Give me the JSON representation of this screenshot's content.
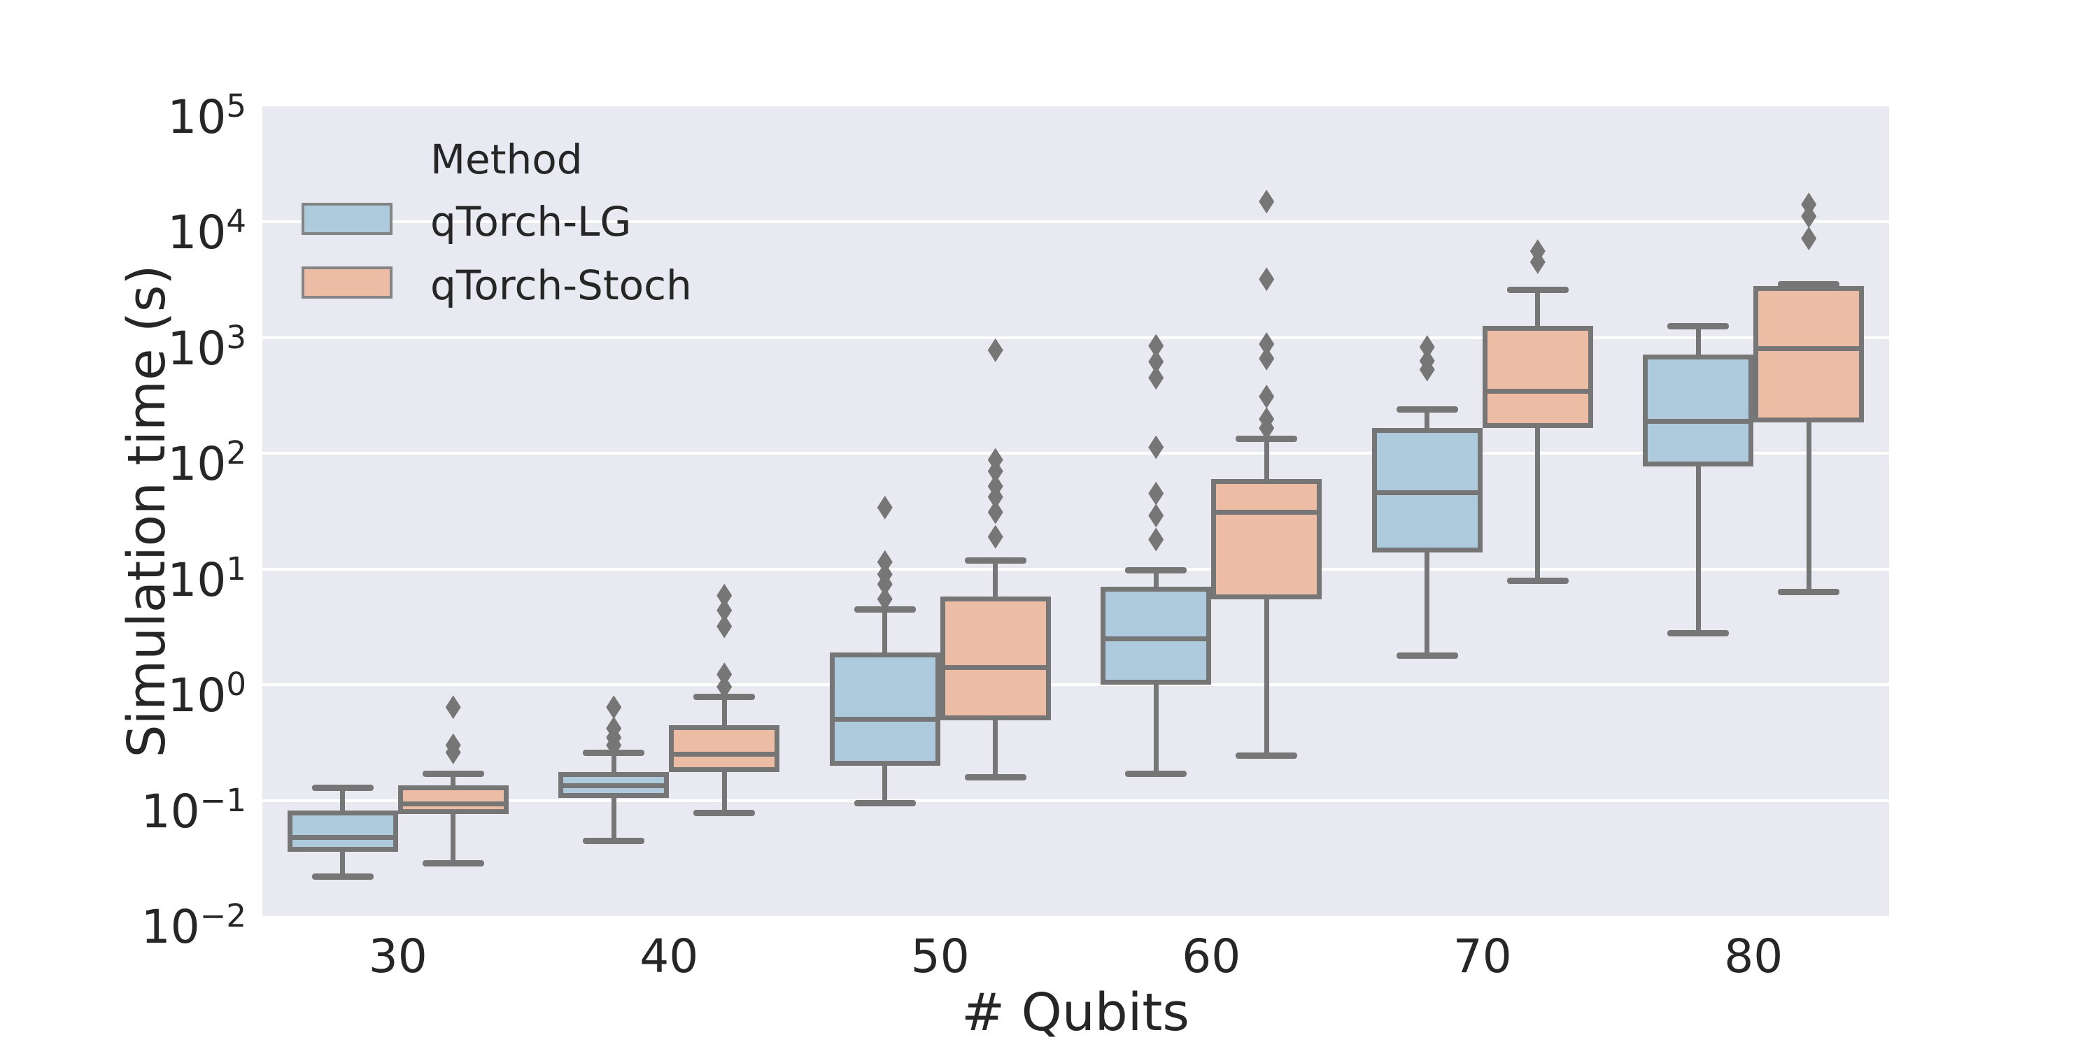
{
  "chart_data": {
    "type": "boxplot",
    "title": "",
    "xlabel": "# Qubits",
    "ylabel": "Simulation time (s)",
    "x_axis_title": "# Qubits",
    "y_axis_title": "Simulation time (s)",
    "yscale": "log",
    "ylim": [
      0.01,
      100000
    ],
    "grid": "horizontal-white-on-gray",
    "categories": [
      "30",
      "40",
      "50",
      "60",
      "70",
      "80"
    ],
    "y_tick_labels": [
      "5",
      "4",
      "3",
      "2",
      "1",
      "0",
      "−1",
      "−2"
    ],
    "y_tick_exponents": [
      5,
      4,
      3,
      2,
      1,
      0,
      -1,
      -2
    ],
    "legend": {
      "title": "Method",
      "position": "upper left"
    },
    "colors": {
      "axes_background": "#e9e9f2",
      "grid": "#ffffff",
      "line": "#767676",
      "text": "#262626",
      "swatch_edge": "#848484"
    },
    "series": [
      {
        "name": "qTorch-LG",
        "color": "#aecbdd",
        "boxes": [
          {
            "whislo": 0.022,
            "q1": 0.036,
            "med": 0.048,
            "q3": 0.082,
            "whishi": 0.13,
            "fliers": []
          },
          {
            "whislo": 0.045,
            "q1": 0.105,
            "med": 0.135,
            "q3": 0.175,
            "whishi": 0.26,
            "fliers": [
              0.3,
              0.35,
              0.42,
              0.64
            ]
          },
          {
            "whislo": 0.095,
            "q1": 0.2,
            "med": 0.5,
            "q3": 1.9,
            "whishi": 4.5,
            "fliers": [
              5.5,
              7.4,
              9.0,
              11.5,
              34
            ]
          },
          {
            "whislo": 0.17,
            "q1": 1.0,
            "med": 2.5,
            "q3": 7.0,
            "whishi": 9.8,
            "fliers": [
              18,
              29,
              45,
              113,
              450,
              620,
              850
            ]
          },
          {
            "whislo": 1.8,
            "q1": 14,
            "med": 46,
            "q3": 165,
            "whishi": 240,
            "fliers": [
              530,
              630,
              830
            ]
          },
          {
            "whislo": 2.8,
            "q1": 77,
            "med": 190,
            "q3": 710,
            "whishi": 1260,
            "fliers": []
          }
        ]
      },
      {
        "name": "qTorch-Stoch",
        "color": "#ecbda4",
        "boxes": [
          {
            "whislo": 0.029,
            "q1": 0.076,
            "med": 0.094,
            "q3": 0.135,
            "whishi": 0.17,
            "fliers": [
              0.26,
              0.3,
              0.64
            ]
          },
          {
            "whislo": 0.078,
            "q1": 0.175,
            "med": 0.25,
            "q3": 0.45,
            "whishi": 0.79,
            "fliers": [
              0.96,
              1.23,
              3.2,
              4.4,
              5.9
            ]
          },
          {
            "whislo": 0.16,
            "q1": 0.49,
            "med": 1.4,
            "q3": 5.8,
            "whishi": 12,
            "fliers": [
              19,
              31,
              42,
              52,
              70,
              88,
              780
            ]
          },
          {
            "whislo": 0.245,
            "q1": 5.5,
            "med": 31,
            "q3": 60,
            "whishi": 134,
            "fliers": [
              165,
              198,
              310,
              660,
              880,
              3200,
              15000
            ]
          },
          {
            "whislo": 8.0,
            "q1": 165,
            "med": 345,
            "q3": 1260,
            "whishi": 2600,
            "fliers": [
              4500,
              5600
            ]
          },
          {
            "whislo": 6.4,
            "q1": 185,
            "med": 800,
            "q3": 2800,
            "whishi": 2900,
            "fliers": [
              7200,
              11200,
              14200
            ]
          }
        ]
      }
    ]
  }
}
